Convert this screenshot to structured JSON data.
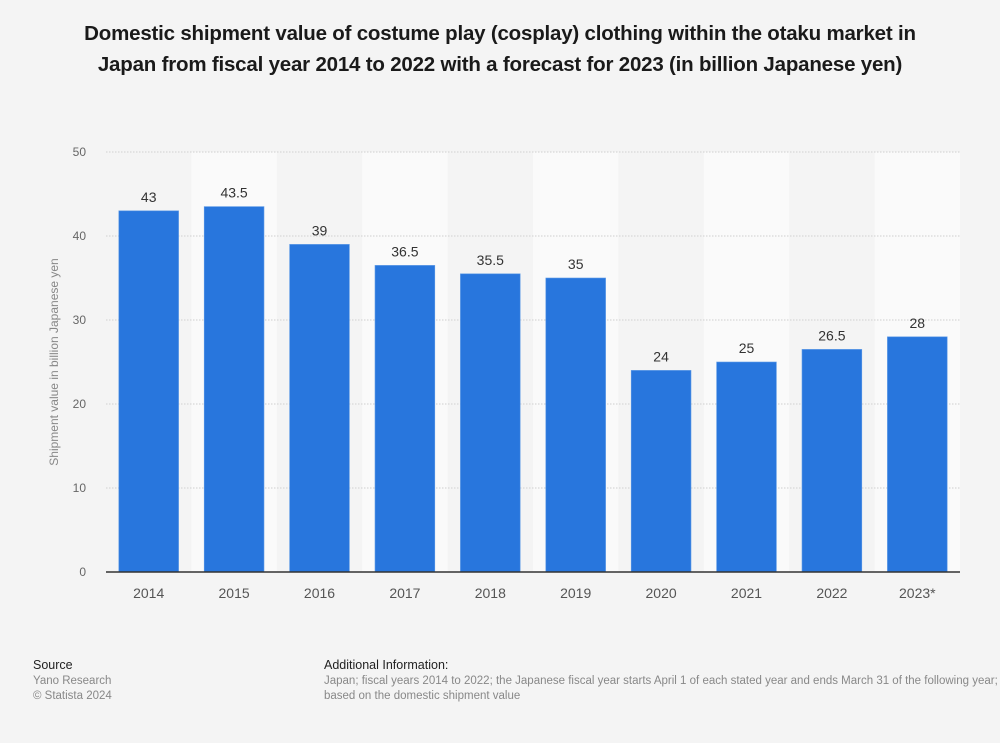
{
  "chart_data": {
    "type": "bar",
    "title": "Domestic shipment value of costume play (cosplay) clothing within the otaku market in Japan from fiscal year 2014 to 2022 with a forecast for 2023 (in billion Japanese yen)",
    "categories": [
      "2014",
      "2015",
      "2016",
      "2017",
      "2018",
      "2019",
      "2020",
      "2021",
      "2022",
      "2023*"
    ],
    "values": [
      43,
      43.5,
      39,
      36.5,
      35.5,
      35,
      24,
      25,
      26.5,
      28
    ],
    "value_labels": [
      "43",
      "43.5",
      "39",
      "36.5",
      "35.5",
      "35",
      "24",
      "25",
      "26.5",
      "28"
    ],
    "xlabel": "",
    "ylabel": "Shipment value in billion Japanese yen",
    "ylim": [
      0,
      50
    ],
    "yticks": [
      0,
      10,
      20,
      30,
      40,
      50
    ],
    "grid": true,
    "bar_color": "#2876dd"
  },
  "footer": {
    "source_heading": "Source",
    "source_lines": [
      "Yano Research",
      "© Statista 2024"
    ],
    "additional_heading": "Additional Information:",
    "additional_lines": [
      "Japan; fiscal years 2014 to 2022; the Japanese fiscal year starts April 1 of each stated year and ends March 31 of the following year;",
      "based on the domestic shipment value"
    ]
  }
}
